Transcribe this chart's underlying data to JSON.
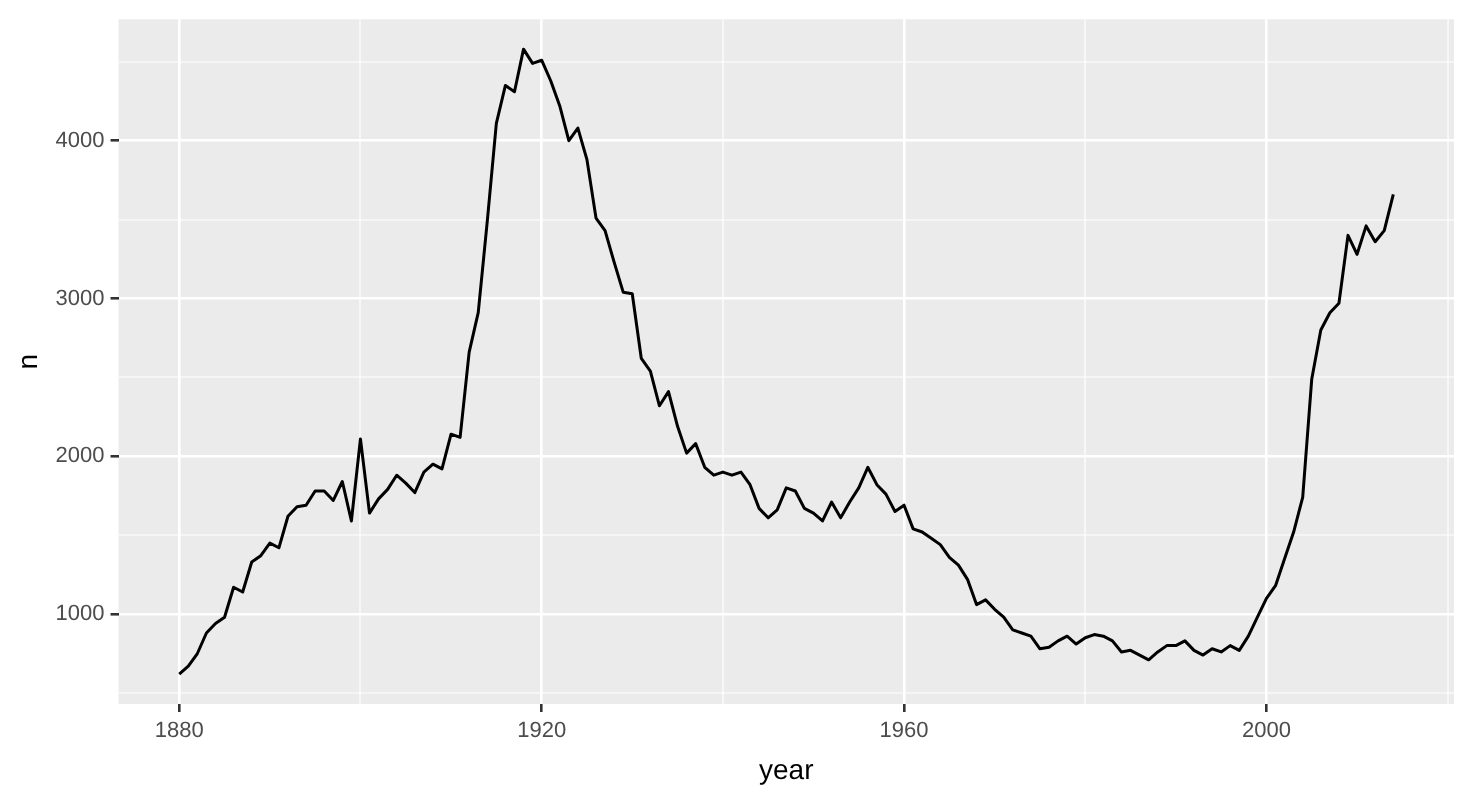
{
  "chart_data": {
    "type": "line",
    "xlabel": "year",
    "ylabel": "n",
    "color": "#000000",
    "marker": "none",
    "grid": true,
    "x": [
      1880,
      1881,
      1882,
      1883,
      1884,
      1885,
      1886,
      1887,
      1888,
      1889,
      1890,
      1891,
      1892,
      1893,
      1894,
      1895,
      1896,
      1897,
      1898,
      1899,
      1900,
      1901,
      1902,
      1903,
      1904,
      1905,
      1906,
      1907,
      1908,
      1909,
      1910,
      1911,
      1912,
      1913,
      1914,
      1915,
      1916,
      1917,
      1918,
      1919,
      1920,
      1921,
      1922,
      1923,
      1924,
      1925,
      1926,
      1927,
      1928,
      1929,
      1930,
      1931,
      1932,
      1933,
      1934,
      1935,
      1936,
      1937,
      1938,
      1939,
      1940,
      1941,
      1942,
      1943,
      1944,
      1945,
      1946,
      1947,
      1948,
      1949,
      1950,
      1951,
      1952,
      1953,
      1954,
      1955,
      1956,
      1957,
      1958,
      1959,
      1960,
      1961,
      1962,
      1963,
      1964,
      1965,
      1966,
      1967,
      1968,
      1969,
      1970,
      1971,
      1972,
      1973,
      1974,
      1975,
      1976,
      1977,
      1978,
      1979,
      1980,
      1981,
      1982,
      1983,
      1984,
      1985,
      1986,
      1987,
      1988,
      1989,
      1990,
      1991,
      1992,
      1993,
      1994,
      1995,
      1996,
      1997,
      1998,
      1999,
      2000,
      2001,
      2002,
      2003,
      2004,
      2005,
      2006,
      2007,
      2008,
      2009,
      2010,
      2011,
      2012,
      2013,
      2014
    ],
    "values": [
      620,
      670,
      750,
      880,
      940,
      980,
      1170,
      1140,
      1330,
      1370,
      1450,
      1420,
      1620,
      1680,
      1690,
      1780,
      1780,
      1720,
      1840,
      1590,
      2110,
      1640,
      1730,
      1790,
      1880,
      1830,
      1770,
      1900,
      1950,
      1920,
      2140,
      2120,
      2660,
      2910,
      3490,
      4110,
      4350,
      4310,
      4580,
      4490,
      4510,
      4380,
      4220,
      4000,
      4080,
      3880,
      3510,
      3430,
      3230,
      3040,
      3030,
      2620,
      2540,
      2320,
      2410,
      2190,
      2020,
      2080,
      1930,
      1880,
      1900,
      1880,
      1900,
      1820,
      1670,
      1610,
      1660,
      1800,
      1780,
      1670,
      1640,
      1590,
      1710,
      1610,
      1710,
      1800,
      1930,
      1820,
      1760,
      1650,
      1690,
      1540,
      1520,
      1480,
      1440,
      1360,
      1310,
      1220,
      1060,
      1090,
      1030,
      980,
      900,
      880,
      860,
      780,
      790,
      830,
      860,
      810,
      850,
      870,
      860,
      830,
      760,
      770,
      740,
      710,
      760,
      800,
      800,
      830,
      770,
      740,
      780,
      760,
      800,
      770,
      860,
      980,
      1100,
      1180,
      1350,
      1520,
      1740,
      2490,
      2800,
      2910,
      2970,
      3400,
      3280,
      3460,
      3360,
      3430,
      3660
    ],
    "xlim": [
      1873.3,
      2020.7
    ],
    "ylim": [
      430,
      4770
    ],
    "xticks": [
      1880,
      {
        "value": 1900,
        "label": null
      },
      1920,
      {
        "value": 1940,
        "label": null
      },
      1960,
      {
        "value": 1980,
        "label": null
      },
      2000,
      {
        "value": 2020,
        "label": null
      }
    ],
    "yticks": [
      {
        "value": 500,
        "label": null
      },
      1000,
      {
        "value": 1500,
        "label": null
      },
      2000,
      {
        "value": 2500,
        "label": null
      },
      3000,
      {
        "value": 3500,
        "label": null
      },
      4000,
      {
        "value": 4500,
        "label": null
      }
    ]
  }
}
